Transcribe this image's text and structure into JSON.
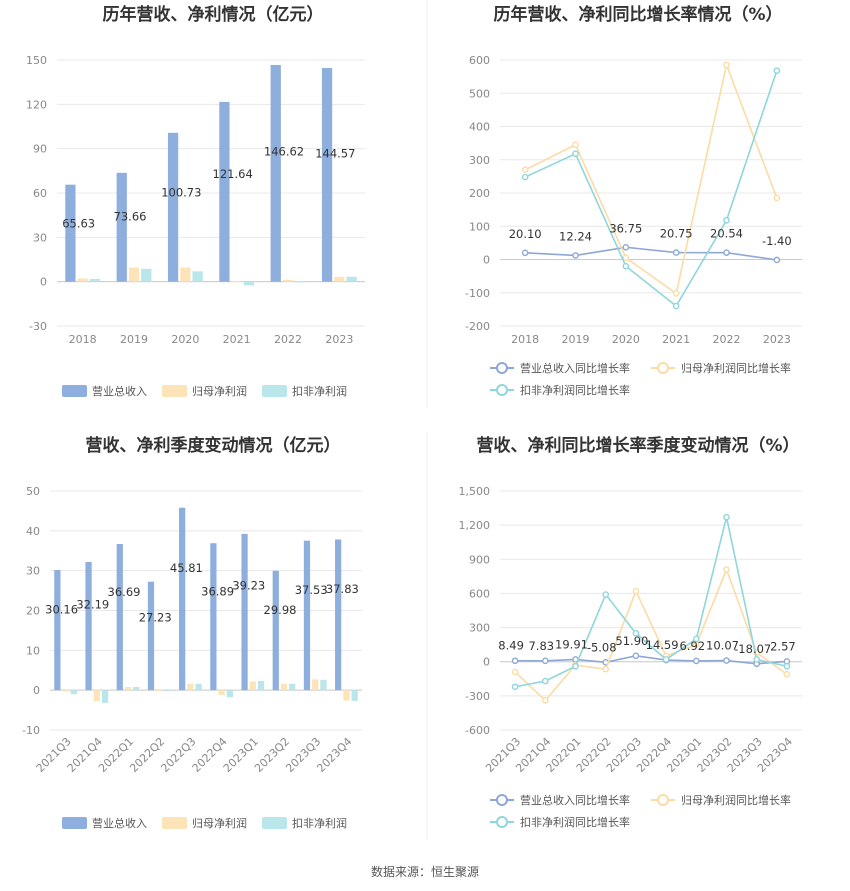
{
  "colors": {
    "revenue": "#8eaedd",
    "parent_profit": "#fde4b8",
    "deducted_profit": "#b9e6ea",
    "revenue_line": "#8ea7d4",
    "parent_line": "#fcdba4",
    "deducted_line": "#8fd6dc",
    "grid": "#e8e8e8",
    "axis": "#cccccc"
  },
  "source": "数据来源：恒生聚源",
  "chart_data": [
    {
      "type": "bar",
      "title": "历年营收、净利情况（亿元）",
      "categories": [
        "2018",
        "2019",
        "2020",
        "2021",
        "2022",
        "2023"
      ],
      "yticks": [
        "150",
        "120",
        "90",
        "60",
        "30",
        "0",
        "-30"
      ],
      "ylim": [
        -30,
        150
      ],
      "series": [
        {
          "name": "营业总收入",
          "values": [
            65.63,
            73.66,
            100.73,
            121.64,
            146.62,
            144.57
          ],
          "labels": [
            "65.63",
            "73.66",
            "100.73",
            "121.64",
            "146.62",
            "144.57"
          ]
        },
        {
          "name": "归母净利润",
          "values": [
            2.2,
            9.5,
            9.6,
            0.3,
            1.2,
            3.3
          ]
        },
        {
          "name": "扣非净利润",
          "values": [
            1.8,
            8.7,
            7.0,
            -2.5,
            0.2,
            3.3
          ]
        }
      ],
      "legend": "bottom"
    },
    {
      "type": "line",
      "title": "历年营收、净利同比增长率情况（%）",
      "categories": [
        "2018",
        "2019",
        "2020",
        "2021",
        "2022",
        "2023"
      ],
      "yticks": [
        "600",
        "500",
        "400",
        "300",
        "200",
        "100",
        "0",
        "-100",
        "-200"
      ],
      "ylim": [
        -200,
        600
      ],
      "series": [
        {
          "name": "营业总收入同比增长率",
          "values": [
            20.1,
            12.24,
            36.75,
            20.75,
            20.54,
            -1.4
          ],
          "labels": [
            "20.10",
            "12.24",
            "36.75",
            "20.75",
            "20.54",
            "-1.40"
          ]
        },
        {
          "name": "归母净利润同比增长率",
          "values": [
            270,
            345,
            5,
            -102,
            585,
            185
          ]
        },
        {
          "name": "扣非净利润同比增长率",
          "values": [
            248,
            318,
            -20,
            -140,
            118,
            568
          ]
        }
      ],
      "legend": "bottom"
    },
    {
      "type": "bar",
      "title": "营收、净利季度变动情况（亿元）",
      "categories": [
        "2021Q3",
        "2021Q4",
        "2022Q1",
        "2022Q2",
        "2022Q3",
        "2022Q4",
        "2023Q1",
        "2023Q2",
        "2023Q3",
        "2023Q4"
      ],
      "yticks": [
        "50",
        "40",
        "30",
        "20",
        "10",
        "0",
        "-10"
      ],
      "ylim": [
        -10,
        50
      ],
      "series": [
        {
          "name": "营业总收入",
          "values": [
            30.16,
            32.19,
            36.69,
            27.23,
            45.81,
            36.89,
            39.23,
            29.98,
            37.53,
            37.83
          ],
          "labels": [
            "30.16",
            "32.19",
            "36.69",
            "27.23",
            "45.81",
            "36.89",
            "39.23",
            "29.98",
            "37.53",
            "37.83"
          ]
        },
        {
          "name": "归母净利润",
          "values": [
            -0.3,
            -2.8,
            0.8,
            -0.2,
            1.6,
            -1.2,
            2.2,
            1.6,
            2.7,
            -2.6
          ]
        },
        {
          "name": "扣非净利润",
          "values": [
            -1.0,
            -3.2,
            0.8,
            -0.2,
            1.6,
            -1.8,
            2.3,
            1.6,
            2.6,
            -2.7
          ]
        }
      ],
      "legend": "bottom"
    },
    {
      "type": "line",
      "title": "营收、净利同比增长率季度变动情况（%）",
      "categories": [
        "2021Q3",
        "2021Q4",
        "2022Q1",
        "2022Q2",
        "2022Q3",
        "2022Q4",
        "2023Q1",
        "2023Q2",
        "2023Q3",
        "2023Q4"
      ],
      "yticks": [
        "1,500",
        "1,200",
        "900",
        "600",
        "300",
        "0",
        "-300",
        "-600"
      ],
      "ylim": [
        -600,
        1500
      ],
      "series": [
        {
          "name": "营业总收入同比增长率",
          "values": [
            8.49,
            7.83,
            19.91,
            -5.08,
            51.9,
            14.59,
            6.92,
            10.07,
            -18.07,
            2.57
          ],
          "labels": [
            "8.49",
            "7.83",
            "19.91",
            "-5.08",
            "51.90",
            "14.59",
            "6.92",
            "10.07",
            "-18.07",
            "2.57"
          ]
        },
        {
          "name": "归母净利润同比增长率",
          "values": [
            -90,
            -340,
            -30,
            -65,
            620,
            50,
            150,
            810,
            80,
            -110
          ]
        },
        {
          "name": "扣非净利润同比增长率",
          "values": [
            -220,
            -170,
            -40,
            590,
            250,
            20,
            200,
            1270,
            20,
            -40
          ]
        }
      ],
      "legend": "bottom"
    }
  ]
}
